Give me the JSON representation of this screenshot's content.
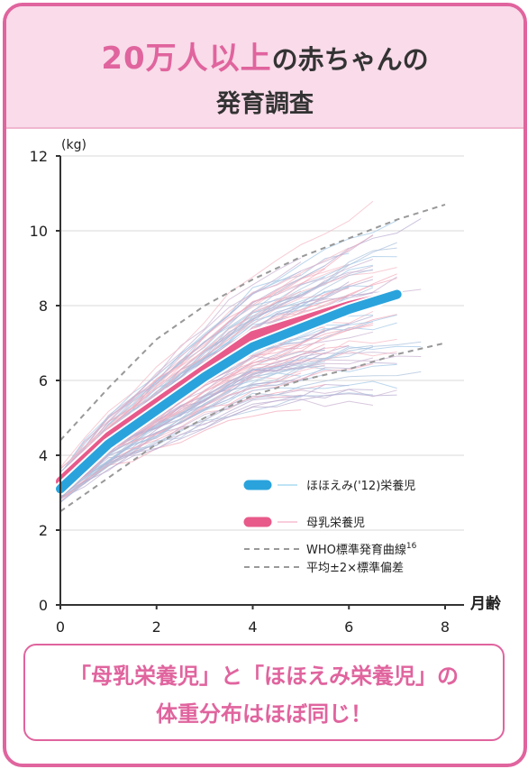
{
  "header": {
    "title_highlight": "20万人以上",
    "title_rest": "の赤ちゃんの",
    "subtitle": "発育調査"
  },
  "chart_data": {
    "type": "line",
    "ylabel": "(kg)",
    "xlabel": "月齢",
    "xlim": [
      0,
      8
    ],
    "ylim": [
      0,
      12
    ],
    "x_ticks": [
      0,
      2,
      4,
      6,
      8
    ],
    "y_ticks": [
      0,
      2,
      4,
      6,
      8,
      10,
      12
    ],
    "grid": true,
    "legend_position": "bottom-right",
    "series": [
      {
        "name": "ほほえみ('12)栄養児",
        "color": "#2aa3dc",
        "x": [
          0,
          1,
          2,
          3,
          4,
          5,
          6,
          7
        ],
        "y": [
          3.1,
          4.3,
          5.2,
          6.1,
          6.9,
          7.4,
          7.9,
          8.3
        ]
      },
      {
        "name": "母乳栄養児",
        "color": "#e85a8a",
        "x": [
          0,
          1,
          2,
          3,
          4,
          5,
          6,
          7
        ],
        "y": [
          3.3,
          4.5,
          5.4,
          6.3,
          7.2,
          7.6,
          8.0,
          8.3
        ]
      },
      {
        "name": "WHO標準発育曲線",
        "footnote": "16",
        "color": "#999999",
        "style": "dashed",
        "x": [
          0,
          1,
          2,
          3,
          4,
          5,
          6,
          7,
          8
        ],
        "y": [
          4.4,
          5.8,
          7.1,
          8.0,
          8.7,
          9.3,
          9.8,
          10.3,
          10.7
        ]
      },
      {
        "name": "平均±2×標準偏差",
        "color": "#999999",
        "style": "dashed",
        "x": [
          0,
          1,
          2,
          3,
          4,
          5,
          6,
          7,
          8
        ],
        "y": [
          2.5,
          3.4,
          4.3,
          5.0,
          5.6,
          6.0,
          6.3,
          6.7,
          7.0
        ]
      }
    ],
    "colors": {
      "formula": "#2aa3dc",
      "breast": "#e85a8a",
      "who": "#999999"
    }
  },
  "message": {
    "line1": "「母乳栄養児」と「ほほえみ栄養児」の",
    "line2": "体重分布はほぼ同じ！"
  }
}
